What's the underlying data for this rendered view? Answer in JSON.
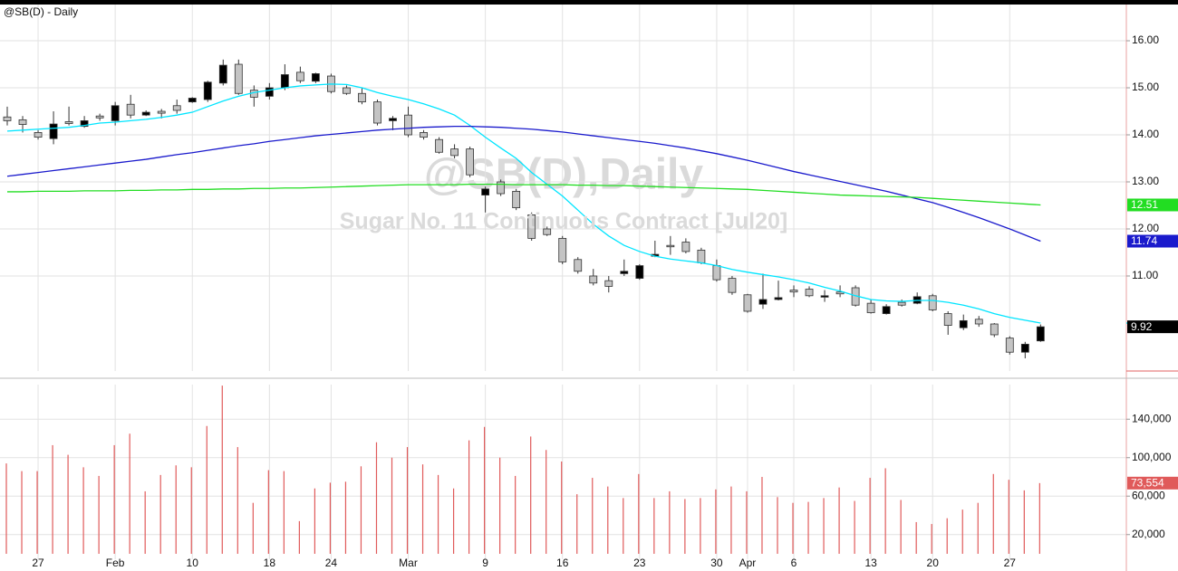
{
  "chart_data": [
    {
      "type": "candlestick",
      "title": "@SB(D) - Daily",
      "watermark_title": "@SB(D),Daily",
      "watermark_subtitle": "Sugar No. 11 Continuous Contract [Jul20]",
      "categories": [
        null,
        null,
        "27",
        null,
        null,
        null,
        null,
        "Feb",
        null,
        null,
        null,
        null,
        "10",
        null,
        null,
        null,
        null,
        "18",
        null,
        null,
        null,
        "24",
        null,
        null,
        null,
        null,
        "Mar",
        null,
        null,
        null,
        null,
        "9",
        null,
        null,
        null,
        null,
        "16",
        null,
        null,
        null,
        null,
        "23",
        null,
        null,
        null,
        null,
        "30",
        null,
        "Apr",
        null,
        null,
        "6",
        null,
        null,
        null,
        null,
        "13",
        null,
        null,
        null,
        "20",
        null,
        null,
        null,
        null,
        "27",
        null,
        null
      ],
      "open": [
        14.38,
        14.32,
        14.05,
        13.92,
        14.28,
        14.18,
        14.4,
        14.3,
        14.65,
        14.42,
        14.5,
        14.62,
        14.7,
        14.75,
        15.1,
        15.5,
        14.95,
        14.82,
        15.0,
        15.33,
        15.14,
        15.25,
        15.0,
        14.88,
        14.7,
        14.3,
        14.42,
        14.05,
        13.9,
        13.7,
        13.7,
        12.72,
        13.0,
        12.8,
        12.3,
        12.0,
        11.8,
        11.35,
        11.0,
        10.9,
        11.05,
        10.95,
        11.42,
        11.65,
        11.72,
        11.55,
        11.22,
        10.95,
        10.6,
        10.4,
        10.5,
        10.7,
        10.72,
        10.55,
        10.66,
        10.75,
        10.42,
        10.2,
        10.44,
        10.42,
        10.58,
        10.2,
        9.9,
        10.08,
        9.98,
        9.68,
        9.38,
        9.62
      ],
      "high": [
        14.6,
        14.4,
        14.1,
        14.5,
        14.6,
        14.4,
        14.45,
        14.7,
        14.85,
        14.52,
        14.55,
        14.75,
        14.8,
        15.15,
        15.6,
        15.6,
        15.05,
        15.1,
        15.5,
        15.45,
        15.32,
        15.3,
        15.05,
        15.0,
        14.75,
        14.4,
        14.6,
        14.1,
        13.95,
        13.8,
        13.75,
        12.9,
        13.05,
        12.85,
        12.35,
        12.05,
        11.85,
        11.4,
        11.15,
        11.0,
        11.35,
        11.25,
        11.75,
        11.85,
        11.8,
        11.6,
        11.35,
        11.0,
        10.62,
        11.05,
        10.9,
        10.8,
        10.78,
        10.7,
        10.8,
        10.8,
        10.5,
        10.4,
        10.5,
        10.65,
        10.62,
        10.25,
        10.18,
        10.15,
        10.0,
        9.72,
        9.6,
        9.97
      ],
      "low": [
        14.2,
        14.05,
        13.9,
        13.8,
        14.2,
        14.15,
        14.3,
        14.2,
        14.35,
        14.4,
        14.35,
        14.45,
        14.68,
        14.7,
        15.05,
        14.85,
        14.6,
        14.75,
        14.95,
        15.1,
        15.1,
        14.88,
        14.85,
        14.65,
        14.2,
        14.1,
        13.95,
        13.9,
        13.6,
        13.5,
        13.1,
        12.35,
        12.7,
        12.4,
        11.75,
        11.85,
        11.25,
        11.05,
        10.8,
        10.65,
        11.0,
        10.92,
        11.4,
        11.45,
        11.48,
        11.25,
        10.88,
        10.6,
        10.22,
        10.3,
        10.48,
        10.55,
        10.55,
        10.45,
        10.55,
        10.35,
        10.2,
        10.18,
        10.35,
        10.4,
        10.25,
        9.75,
        9.85,
        9.92,
        9.7,
        9.33,
        9.25,
        9.6
      ],
      "close": [
        14.3,
        14.22,
        13.95,
        14.23,
        14.24,
        14.3,
        14.36,
        14.62,
        14.42,
        14.48,
        14.46,
        14.52,
        14.78,
        15.12,
        15.48,
        14.88,
        14.8,
        15.0,
        15.28,
        15.15,
        15.3,
        14.92,
        14.88,
        14.7,
        14.25,
        14.35,
        14.0,
        13.95,
        13.63,
        13.56,
        13.15,
        12.85,
        12.75,
        12.45,
        11.8,
        11.88,
        11.3,
        11.1,
        10.85,
        10.78,
        11.1,
        11.22,
        11.46,
        11.62,
        11.52,
        11.28,
        10.92,
        10.65,
        10.25,
        10.5,
        10.54,
        10.66,
        10.58,
        10.58,
        10.62,
        10.38,
        10.22,
        10.35,
        10.38,
        10.56,
        10.28,
        9.95,
        10.05,
        9.98,
        9.75,
        9.38,
        9.55,
        9.92
      ],
      "up_color": "#000000",
      "down_color": "#c4c4c4",
      "last_color": "#000000",
      "series": [
        {
          "color": "#00e5ff",
          "values": [
            14.08,
            14.1,
            14.12,
            14.14,
            14.16,
            14.2,
            14.25,
            14.27,
            14.3,
            14.33,
            14.37,
            14.42,
            14.48,
            14.6,
            14.72,
            14.82,
            14.9,
            14.95,
            15.0,
            15.04,
            15.06,
            15.08,
            15.07,
            15.0,
            14.9,
            14.82,
            14.75,
            14.66,
            14.55,
            14.42,
            14.2,
            13.95,
            13.72,
            13.5,
            13.2,
            12.95,
            12.7,
            12.4,
            12.1,
            11.85,
            11.65,
            11.52,
            11.42,
            11.36,
            11.32,
            11.28,
            11.22,
            11.14,
            11.08,
            11.03,
            10.98,
            10.92,
            10.85,
            10.76,
            10.68,
            10.58,
            10.5,
            10.47,
            10.46,
            10.48,
            10.48,
            10.44,
            10.38,
            10.3,
            10.2,
            10.12,
            10.06,
            10.0
          ]
        },
        {
          "color": "#1a1acc",
          "values": [
            13.12,
            13.16,
            13.2,
            13.24,
            13.28,
            13.32,
            13.36,
            13.4,
            13.44,
            13.48,
            13.53,
            13.58,
            13.62,
            13.67,
            13.72,
            13.77,
            13.81,
            13.86,
            13.9,
            13.94,
            13.98,
            14.01,
            14.04,
            14.07,
            14.1,
            14.12,
            14.14,
            14.16,
            14.17,
            14.18,
            14.18,
            14.17,
            14.16,
            14.14,
            14.12,
            14.09,
            14.06,
            14.02,
            13.98,
            13.94,
            13.9,
            13.86,
            13.82,
            13.77,
            13.72,
            13.66,
            13.6,
            13.53,
            13.46,
            13.38,
            13.3,
            13.22,
            13.15,
            13.08,
            13.01,
            12.94,
            12.87,
            12.8,
            12.72,
            12.64,
            12.56,
            12.46,
            12.35,
            12.24,
            12.12,
            12.0,
            11.87,
            11.74
          ]
        },
        {
          "color": "#22dd22",
          "values": [
            12.79,
            12.79,
            12.8,
            12.8,
            12.8,
            12.81,
            12.81,
            12.81,
            12.82,
            12.82,
            12.83,
            12.83,
            12.84,
            12.84,
            12.85,
            12.85,
            12.86,
            12.86,
            12.87,
            12.87,
            12.88,
            12.89,
            12.9,
            12.91,
            12.92,
            12.93,
            12.94,
            12.94,
            12.94,
            12.94,
            12.95,
            12.95,
            12.95,
            12.94,
            12.94,
            12.94,
            12.94,
            12.93,
            12.93,
            12.92,
            12.92,
            12.91,
            12.9,
            12.89,
            12.88,
            12.87,
            12.86,
            12.85,
            12.84,
            12.82,
            12.8,
            12.78,
            12.76,
            12.74,
            12.72,
            12.71,
            12.7,
            12.69,
            12.68,
            12.67,
            12.65,
            12.63,
            12.61,
            12.59,
            12.57,
            12.55,
            12.53,
            12.51
          ]
        }
      ],
      "ylim": [
        8.98,
        16.77
      ],
      "yticks": [
        {
          "value": 11,
          "label": "11.00"
        },
        {
          "value": 12,
          "label": "12.00"
        },
        {
          "value": 13,
          "label": "13.00"
        },
        {
          "value": 14,
          "label": "14.00"
        },
        {
          "value": 15,
          "label": "15.00"
        },
        {
          "value": 16,
          "label": "16.00"
        }
      ],
      "grid": true
    },
    {
      "type": "bar",
      "color": "#e05a5a",
      "values": [
        94000,
        86000,
        86000,
        113000,
        103000,
        90000,
        81000,
        113000,
        125000,
        65000,
        82000,
        92000,
        90000,
        133000,
        175000,
        111000,
        53000,
        87000,
        86000,
        34000,
        68000,
        74000,
        75000,
        91000,
        116000,
        100000,
        111000,
        93000,
        82000,
        68000,
        118000,
        132000,
        100000,
        81000,
        122000,
        108000,
        96000,
        62000,
        79000,
        70000,
        58000,
        83000,
        58000,
        65000,
        57000,
        58000,
        67000,
        70000,
        65000,
        80000,
        59000,
        53000,
        54000,
        58000,
        69000,
        55000,
        79000,
        89000,
        56000,
        33000,
        31000,
        37000,
        46000,
        53000,
        83000,
        77000,
        66000,
        73554
      ],
      "last_label": "73,554",
      "ylim": [
        0,
        176000
      ],
      "yticks": [
        {
          "value": 20000,
          "label": "20,000"
        },
        {
          "value": 60000,
          "label": "60,000"
        },
        {
          "value": 100000,
          "label": "100,000"
        },
        {
          "value": 140000,
          "label": "140,000"
        }
      ],
      "grid": true
    }
  ]
}
